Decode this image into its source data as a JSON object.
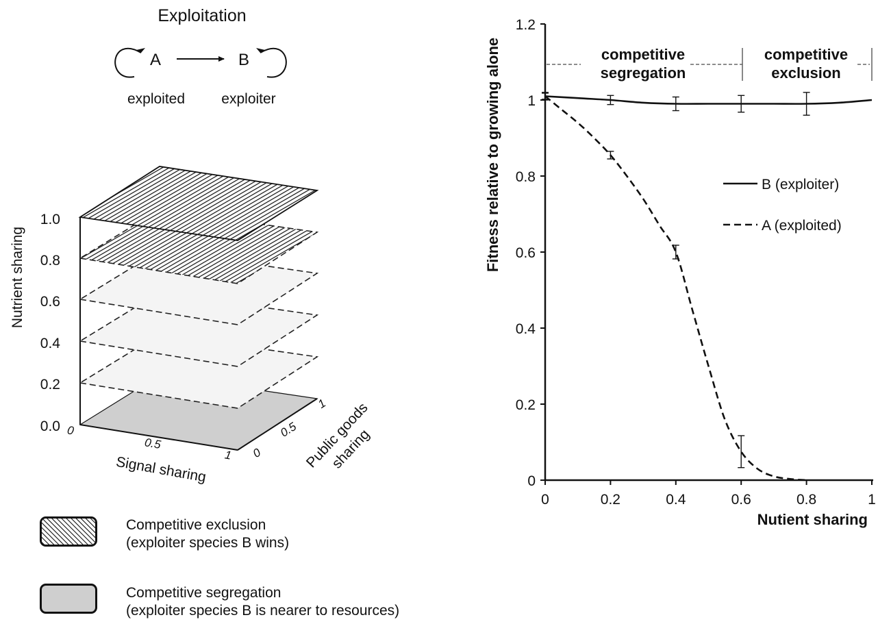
{
  "panel_left": {
    "title": "Exploitation",
    "node_a": "A",
    "node_b": "B",
    "node_a_caption": "exploited",
    "node_b_caption": "exploiter",
    "z_label": "Nutrient sharing",
    "z_ticks": [
      "1.0",
      "0.8",
      "0.6",
      "0.4",
      "0.2",
      "0.0"
    ],
    "x_label": "Signal sharing",
    "x_ticks": [
      "0",
      "0.5",
      "1"
    ],
    "y_label_line1": "Public goods",
    "y_label_line2": "sharing",
    "y_ticks": [
      "0",
      "0.5",
      "1"
    ],
    "levels": [
      {
        "nutrient_sharing": 1.0,
        "state": "competitive exclusion"
      },
      {
        "nutrient_sharing": 0.8,
        "state": "competitive exclusion"
      },
      {
        "nutrient_sharing": 0.6,
        "state": "neither"
      },
      {
        "nutrient_sharing": 0.4,
        "state": "neither"
      },
      {
        "nutrient_sharing": 0.2,
        "state": "neither"
      },
      {
        "nutrient_sharing": 0.0,
        "state": "competitive segregation"
      }
    ],
    "legend": [
      {
        "line1": "Competitive exclusion",
        "line2": "(exploiter species B wins)"
      },
      {
        "line1": "Competitive segregation",
        "line2": "(exploiter species B is nearer to resources)"
      }
    ]
  },
  "chart_data": {
    "type": "line",
    "xlabel": "Nutient sharing",
    "ylabel": "Fitness relative to growing alone",
    "xlim": [
      0,
      1
    ],
    "ylim": [
      0,
      1.2
    ],
    "x_ticks": [
      "0",
      "0.2",
      "0.4",
      "0.6",
      "0.8",
      "1"
    ],
    "y_ticks": [
      "0",
      "0.2",
      "0.4",
      "0.6",
      "0.8",
      "1",
      "1.2"
    ],
    "regions": [
      {
        "label_line1": "competitive",
        "label_line2": "segregation",
        "x_range": [
          0,
          0.6
        ]
      },
      {
        "label_line1": "competitive",
        "label_line2": "exclusion",
        "x_range": [
          0.6,
          1
        ]
      }
    ],
    "series": [
      {
        "name": "B (exploiter)",
        "style": "solid",
        "x": [
          0,
          0.2,
          0.4,
          0.6,
          0.8,
          1
        ],
        "y": [
          1.01,
          1.0,
          0.99,
          0.99,
          0.99,
          1.0
        ],
        "err": [
          0.008,
          0.012,
          0.018,
          0.022,
          0.03,
          0
        ],
        "curve": [
          [
            0,
            1.01
          ],
          [
            0.1,
            1.005
          ],
          [
            0.2,
            1.0
          ],
          [
            0.3,
            0.993
          ],
          [
            0.4,
            0.99
          ],
          [
            0.5,
            0.99
          ],
          [
            0.6,
            0.99
          ],
          [
            0.7,
            0.99
          ],
          [
            0.8,
            0.99
          ],
          [
            0.9,
            0.993
          ],
          [
            1,
            1.0
          ]
        ]
      },
      {
        "name": "A (exploited)",
        "style": "dashed",
        "x": [
          0,
          0.2,
          0.4,
          0.6,
          0.8
        ],
        "y": [
          1.01,
          0.855,
          0.6,
          0.075,
          0.0
        ],
        "err": [
          0.01,
          0.01,
          0.018,
          0.042,
          0
        ],
        "curve": [
          [
            0,
            1.01
          ],
          [
            0.05,
            0.975
          ],
          [
            0.1,
            0.94
          ],
          [
            0.15,
            0.9
          ],
          [
            0.2,
            0.855
          ],
          [
            0.25,
            0.8
          ],
          [
            0.3,
            0.74
          ],
          [
            0.35,
            0.67
          ],
          [
            0.4,
            0.6
          ],
          [
            0.45,
            0.45
          ],
          [
            0.5,
            0.3
          ],
          [
            0.55,
            0.16
          ],
          [
            0.6,
            0.075
          ],
          [
            0.65,
            0.03
          ],
          [
            0.7,
            0.01
          ],
          [
            0.75,
            0.003
          ],
          [
            0.8,
            0.0
          ]
        ]
      }
    ]
  },
  "colors": {
    "ink": "#111111",
    "face_light": "#f4f4f4",
    "face_gray": "#cfcfcf"
  }
}
